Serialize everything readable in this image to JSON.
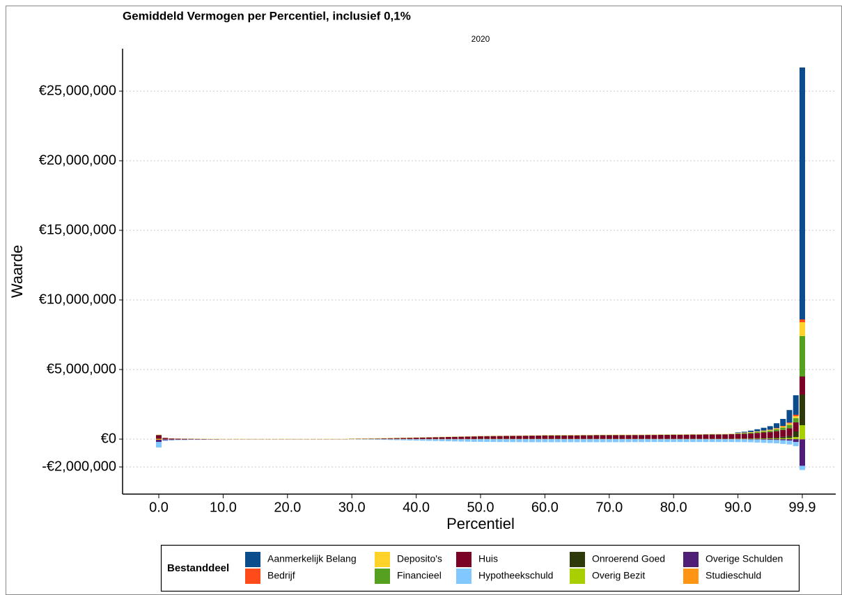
{
  "chart_data": {
    "type": "stacked-bar",
    "title": "Gemiddeld Vermogen per Percentiel, inclusief 0,1%",
    "subtitle": "2020",
    "x_label": "Percentiel",
    "y_label": "Waarde",
    "legend_title": "Bestanddeel",
    "legend_position": "bottom",
    "grid": true,
    "categories": [
      "0.0",
      null,
      null,
      null,
      null,
      null,
      null,
      null,
      null,
      null,
      "10.0",
      null,
      null,
      null,
      null,
      null,
      null,
      null,
      null,
      null,
      "20.0",
      null,
      null,
      null,
      null,
      null,
      null,
      null,
      null,
      null,
      "30.0",
      null,
      null,
      null,
      null,
      null,
      null,
      null,
      null,
      null,
      "40.0",
      null,
      null,
      null,
      null,
      null,
      null,
      null,
      null,
      null,
      "50.0",
      null,
      null,
      null,
      null,
      null,
      null,
      null,
      null,
      null,
      "60.0",
      null,
      null,
      null,
      null,
      null,
      null,
      null,
      null,
      null,
      "70.0",
      null,
      null,
      null,
      null,
      null,
      null,
      null,
      null,
      null,
      "80.0",
      null,
      null,
      null,
      null,
      null,
      null,
      null,
      null,
      null,
      "90.0",
      null,
      null,
      null,
      null,
      null,
      null,
      null,
      null,
      null,
      "99.9"
    ],
    "ylim": [
      -3950000,
      28050000
    ],
    "yticks": [
      {
        "value": -2000000,
        "label": "-€2,000,000"
      },
      {
        "value": 0,
        "label": "€0"
      },
      {
        "value": 5000000,
        "label": "€5,000,000"
      },
      {
        "value": 10000000,
        "label": "€10,000,000"
      },
      {
        "value": 15000000,
        "label": "€15,000,000"
      },
      {
        "value": 20000000,
        "label": "€20,000,000"
      },
      {
        "value": 25000000,
        "label": "€25,000,000"
      }
    ],
    "series": [
      {
        "name": "Aanmerkelijk Belang",
        "color": "#0b4c8c",
        "values": [
          0,
          0,
          0,
          0,
          0,
          0,
          0,
          0,
          0,
          0,
          0,
          0,
          0,
          0,
          0,
          0,
          0,
          0,
          0,
          0,
          0,
          0,
          0,
          0,
          0,
          0,
          0,
          0,
          0,
          0,
          0,
          0,
          0,
          0,
          0,
          0,
          0,
          0,
          0,
          0,
          0,
          0,
          0,
          0,
          0,
          0,
          0,
          0,
          0,
          0,
          0,
          0,
          0,
          0,
          0,
          0,
          0,
          0,
          0,
          0,
          0,
          0,
          0,
          0,
          0,
          0,
          0,
          0,
          0,
          0,
          0,
          0,
          0,
          0,
          0,
          0,
          0,
          0,
          0,
          0,
          0,
          0,
          0,
          0,
          0,
          0,
          0,
          0,
          0,
          0,
          40000,
          60000,
          100000,
          150000,
          200000,
          250000,
          350000,
          500000,
          900000,
          1400000,
          18100000
        ]
      },
      {
        "name": "Bedrijf",
        "color": "#ff4a1a",
        "values": [
          5000,
          0,
          0,
          0,
          0,
          0,
          0,
          0,
          0,
          0,
          0,
          0,
          0,
          0,
          0,
          0,
          0,
          0,
          0,
          0,
          0,
          0,
          0,
          0,
          0,
          0,
          0,
          0,
          0,
          0,
          0,
          0,
          0,
          0,
          0,
          0,
          0,
          0,
          0,
          0,
          0,
          0,
          0,
          0,
          0,
          0,
          0,
          0,
          0,
          0,
          0,
          0,
          0,
          0,
          0,
          0,
          0,
          0,
          0,
          0,
          0,
          0,
          0,
          0,
          0,
          0,
          0,
          0,
          0,
          0,
          0,
          0,
          0,
          0,
          0,
          0,
          0,
          0,
          0,
          0,
          0,
          0,
          0,
          0,
          0,
          0,
          0,
          0,
          0,
          0,
          5000,
          5000,
          10000,
          10000,
          15000,
          20000,
          30000,
          40000,
          60000,
          100000,
          200000
        ]
      },
      {
        "name": "Deposito's",
        "color": "#ffd32a",
        "values": [
          10000,
          5000,
          5000,
          5000,
          5000,
          5000,
          5000,
          5000,
          5000,
          5000,
          5000,
          5000,
          5000,
          5000,
          5000,
          5000,
          5000,
          5000,
          5000,
          5000,
          5000,
          5000,
          5000,
          5000,
          5000,
          5000,
          5000,
          5000,
          5000,
          5000,
          15000,
          15000,
          15000,
          15000,
          15000,
          15000,
          15000,
          15000,
          15000,
          15000,
          15000,
          15000,
          15000,
          15000,
          15000,
          15000,
          15000,
          15000,
          15000,
          15000,
          15000,
          15000,
          15000,
          15000,
          15000,
          15000,
          15000,
          15000,
          15000,
          15000,
          15000,
          15000,
          15000,
          15000,
          15000,
          15000,
          15000,
          15000,
          15000,
          15000,
          15000,
          15000,
          15000,
          15000,
          15000,
          15000,
          15000,
          15000,
          15000,
          15000,
          15000,
          15000,
          15000,
          15000,
          15000,
          15000,
          15000,
          15000,
          15000,
          15000,
          30000,
          30000,
          35000,
          40000,
          45000,
          50000,
          60000,
          80000,
          100000,
          150000,
          1000000
        ]
      },
      {
        "name": "Financieel",
        "color": "#56a021",
        "values": [
          20000,
          2000,
          2000,
          2000,
          2000,
          2000,
          2000,
          2000,
          2000,
          2000,
          2000,
          2000,
          2000,
          2000,
          2000,
          2000,
          2000,
          2000,
          2000,
          2000,
          2000,
          2000,
          2000,
          2000,
          2000,
          2000,
          2000,
          2000,
          2000,
          2000,
          10000,
          10000,
          10000,
          10000,
          10000,
          10000,
          10000,
          10000,
          10000,
          10000,
          10000,
          10000,
          10000,
          10000,
          10000,
          10000,
          10000,
          10000,
          10000,
          10000,
          10000,
          10000,
          10000,
          10000,
          10000,
          10000,
          10000,
          10000,
          10000,
          10000,
          20000,
          20000,
          20000,
          20000,
          20000,
          20000,
          20000,
          20000,
          20000,
          20000,
          20000,
          20000,
          20000,
          20000,
          20000,
          20000,
          20000,
          20000,
          20000,
          20000,
          20000,
          20000,
          20000,
          20000,
          20000,
          20000,
          20000,
          20000,
          20000,
          20000,
          40000,
          50000,
          60000,
          70000,
          80000,
          100000,
          130000,
          170000,
          250000,
          300000,
          2900000
        ]
      },
      {
        "name": "Huis",
        "color": "#7b0025",
        "values": [
          250000,
          80000,
          40000,
          30000,
          20000,
          15000,
          10000,
          5000,
          0,
          0,
          0,
          0,
          0,
          0,
          0,
          0,
          0,
          0,
          0,
          0,
          0,
          0,
          0,
          0,
          0,
          0,
          0,
          0,
          0,
          0,
          10000,
          15000,
          20000,
          25000,
          30000,
          40000,
          50000,
          60000,
          70000,
          80000,
          90000,
          100000,
          110000,
          120000,
          130000,
          140000,
          150000,
          160000,
          170000,
          180000,
          190000,
          195000,
          200000,
          205000,
          210000,
          215000,
          220000,
          225000,
          230000,
          235000,
          240000,
          240000,
          245000,
          245000,
          250000,
          250000,
          255000,
          255000,
          260000,
          260000,
          265000,
          265000,
          270000,
          270000,
          275000,
          275000,
          280000,
          280000,
          285000,
          285000,
          290000,
          290000,
          295000,
          300000,
          300000,
          305000,
          310000,
          315000,
          320000,
          330000,
          340000,
          350000,
          360000,
          380000,
          400000,
          420000,
          450000,
          500000,
          550000,
          650000,
          1300000
        ]
      },
      {
        "name": "Hypotheekschuld",
        "color": "#80c8ff",
        "values": [
          -400000,
          -50000,
          -30000,
          -20000,
          -15000,
          -10000,
          -10000,
          -5000,
          -5000,
          0,
          0,
          0,
          0,
          0,
          0,
          0,
          0,
          0,
          0,
          0,
          0,
          0,
          0,
          0,
          0,
          0,
          0,
          0,
          0,
          0,
          -10000,
          -15000,
          -20000,
          -25000,
          -30000,
          -40000,
          -50000,
          -60000,
          -70000,
          -80000,
          -90000,
          -100000,
          -110000,
          -120000,
          -130000,
          -140000,
          -150000,
          -160000,
          -170000,
          -180000,
          -185000,
          -190000,
          -195000,
          -200000,
          -200000,
          -205000,
          -205000,
          -210000,
          -210000,
          -210000,
          -210000,
          -210000,
          -210000,
          -210000,
          -210000,
          -210000,
          -210000,
          -210000,
          -210000,
          -210000,
          -210000,
          -210000,
          -210000,
          -205000,
          -205000,
          -205000,
          -200000,
          -200000,
          -200000,
          -200000,
          -200000,
          -200000,
          -200000,
          -200000,
          -200000,
          -200000,
          -200000,
          -200000,
          -200000,
          -200000,
          -200000,
          -200000,
          -200000,
          -210000,
          -220000,
          -230000,
          -240000,
          -260000,
          -280000,
          -300000,
          -300000
        ]
      },
      {
        "name": "Onroerend Goed",
        "color": "#2f3a0a",
        "values": [
          10000,
          0,
          0,
          0,
          0,
          0,
          0,
          0,
          0,
          0,
          0,
          0,
          0,
          0,
          0,
          0,
          0,
          0,
          0,
          0,
          0,
          0,
          0,
          0,
          0,
          0,
          0,
          0,
          0,
          0,
          0,
          0,
          0,
          0,
          0,
          0,
          0,
          0,
          0,
          0,
          0,
          0,
          0,
          0,
          0,
          0,
          0,
          0,
          0,
          0,
          0,
          0,
          0,
          0,
          0,
          0,
          0,
          0,
          0,
          0,
          0,
          0,
          0,
          0,
          0,
          0,
          0,
          0,
          0,
          0,
          0,
          0,
          0,
          0,
          0,
          0,
          0,
          0,
          0,
          0,
          5000,
          5000,
          5000,
          5000,
          5000,
          5000,
          5000,
          5000,
          5000,
          5000,
          10000,
          15000,
          20000,
          30000,
          40000,
          50000,
          70000,
          100000,
          150000,
          400000,
          2200000
        ]
      },
      {
        "name": "Overig Bezit",
        "color": "#a8cf00",
        "values": [
          20000,
          10000,
          10000,
          10000,
          10000,
          10000,
          10000,
          10000,
          10000,
          10000,
          10000,
          10000,
          10000,
          10000,
          10000,
          10000,
          10000,
          10000,
          10000,
          10000,
          10000,
          10000,
          10000,
          10000,
          10000,
          10000,
          10000,
          10000,
          10000,
          10000,
          10000,
          10000,
          10000,
          10000,
          10000,
          10000,
          10000,
          10000,
          10000,
          10000,
          10000,
          10000,
          10000,
          10000,
          10000,
          10000,
          10000,
          10000,
          10000,
          10000,
          15000,
          15000,
          15000,
          15000,
          15000,
          15000,
          15000,
          15000,
          15000,
          15000,
          15000,
          15000,
          15000,
          15000,
          15000,
          15000,
          15000,
          15000,
          15000,
          15000,
          15000,
          15000,
          15000,
          15000,
          15000,
          15000,
          15000,
          15000,
          15000,
          15000,
          15000,
          15000,
          15000,
          15000,
          15000,
          15000,
          15000,
          15000,
          15000,
          15000,
          20000,
          20000,
          25000,
          30000,
          35000,
          40000,
          50000,
          60000,
          80000,
          150000,
          1000000
        ]
      },
      {
        "name": "Overige Schulden",
        "color": "#4f1f77",
        "values": [
          -150000,
          -60000,
          -50000,
          -40000,
          -40000,
          -30000,
          -30000,
          -30000,
          -20000,
          -20000,
          -10000,
          -10000,
          -10000,
          -10000,
          -10000,
          -10000,
          -10000,
          -10000,
          -10000,
          -10000,
          -10000,
          -10000,
          -10000,
          -10000,
          -10000,
          -10000,
          -10000,
          -10000,
          -10000,
          -10000,
          -5000,
          -5000,
          -5000,
          -5000,
          -5000,
          -5000,
          -5000,
          -5000,
          -5000,
          -5000,
          -5000,
          -5000,
          -5000,
          -5000,
          -5000,
          -5000,
          -5000,
          -5000,
          -5000,
          -5000,
          -5000,
          -5000,
          -5000,
          -5000,
          -5000,
          -5000,
          -5000,
          -5000,
          -5000,
          -5000,
          -5000,
          -5000,
          -5000,
          -5000,
          -5000,
          -5000,
          -5000,
          -5000,
          -5000,
          -5000,
          -5000,
          -5000,
          -5000,
          -5000,
          -5000,
          -5000,
          -5000,
          -5000,
          -5000,
          -5000,
          -5000,
          -5000,
          -5000,
          -5000,
          -5000,
          -5000,
          -5000,
          -5000,
          -5000,
          -5000,
          -10000,
          -10000,
          -20000,
          -30000,
          -40000,
          -50000,
          -60000,
          -80000,
          -100000,
          -200000,
          -1900000
        ]
      },
      {
        "name": "Studieschuld",
        "color": "#ff9514",
        "values": [
          -50000,
          -15000,
          -15000,
          -15000,
          -15000,
          -15000,
          -15000,
          -15000,
          -15000,
          -15000,
          -15000,
          -15000,
          -15000,
          -15000,
          -15000,
          -15000,
          -15000,
          -15000,
          -15000,
          -15000,
          -15000,
          -15000,
          -15000,
          -15000,
          -15000,
          -15000,
          -15000,
          -15000,
          -15000,
          -15000,
          -10000,
          -10000,
          -10000,
          -10000,
          -10000,
          -10000,
          -10000,
          -10000,
          -10000,
          -10000,
          -10000,
          -10000,
          -10000,
          -10000,
          -10000,
          -10000,
          -10000,
          -10000,
          -10000,
          -10000,
          -5000,
          -5000,
          -5000,
          -5000,
          -5000,
          -5000,
          -5000,
          -5000,
          -5000,
          -5000,
          -5000,
          -5000,
          -5000,
          -5000,
          -5000,
          -5000,
          -5000,
          -5000,
          -5000,
          -5000,
          -5000,
          -5000,
          -5000,
          -5000,
          -5000,
          -5000,
          -5000,
          -5000,
          -5000,
          -5000,
          -5000,
          -5000,
          -5000,
          -5000,
          -5000,
          -5000,
          -5000,
          -5000,
          -5000,
          -5000,
          -5000,
          -5000,
          -5000,
          -5000,
          -5000,
          -5000,
          -5000,
          -5000,
          -5000,
          -5000,
          -20000
        ]
      }
    ]
  }
}
